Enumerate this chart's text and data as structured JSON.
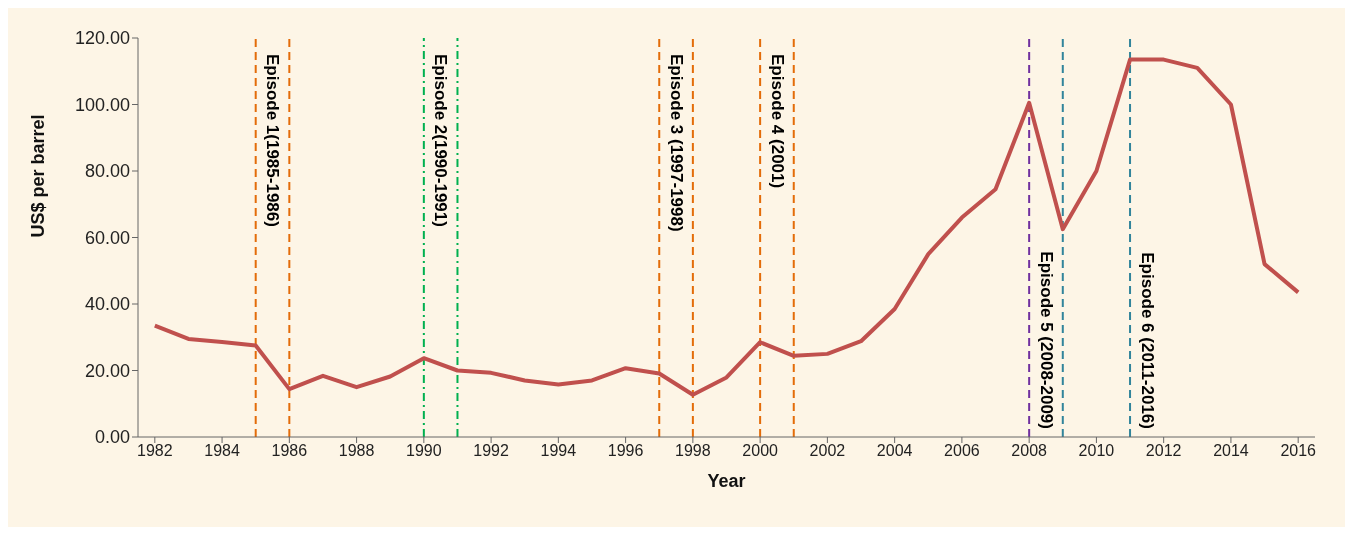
{
  "chart_data": {
    "type": "line",
    "xlabel": "Year",
    "ylabel": "US$ per barrel",
    "x": [
      1982,
      1983,
      1984,
      1985,
      1986,
      1987,
      1988,
      1989,
      1990,
      1991,
      1992,
      1993,
      1994,
      1995,
      1996,
      1997,
      1998,
      1999,
      2000,
      2001,
      2002,
      2003,
      2004,
      2005,
      2006,
      2007,
      2008,
      2009,
      2010,
      2011,
      2012,
      2013,
      2014,
      2015,
      2016
    ],
    "series": [
      {
        "color": "#c0504d",
        "values": [
          33.5,
          29.5,
          28.6,
          27.5,
          14.4,
          18.4,
          15,
          18.2,
          23.7,
          20,
          19.3,
          17,
          15.8,
          17,
          20.7,
          19.1,
          12.7,
          17.9,
          28.5,
          24.4,
          25,
          28.8,
          38.5,
          55,
          66,
          74.5,
          100.5,
          62.5,
          80,
          113.5,
          113.5,
          111,
          100,
          52,
          43.5
        ]
      }
    ],
    "xlim": [
      1981.5,
      2016.5
    ],
    "xticks": [
      1982,
      1984,
      1986,
      1988,
      1990,
      1992,
      1994,
      1996,
      1998,
      2000,
      2002,
      2004,
      2006,
      2008,
      2010,
      2012,
      2014,
      2016
    ],
    "ylim": [
      0,
      120
    ],
    "yticks": [
      {
        "value": 0,
        "label": "0.00"
      },
      {
        "value": 20,
        "label": "20.00"
      },
      {
        "value": 40,
        "label": "40.00"
      },
      {
        "value": 60,
        "label": "60.00"
      },
      {
        "value": 80,
        "label": "80.00"
      },
      {
        "value": 100,
        "label": "100.00"
      },
      {
        "value": 120,
        "label": "120.00"
      }
    ],
    "grid": false,
    "legend": false,
    "marker": "none",
    "line_style": "solid",
    "ref_lines": [
      {
        "axis": "x",
        "value": 1985,
        "label": "Episode 1(1985-1986)",
        "color": "#e36c09",
        "line_style": "dashed"
      },
      {
        "axis": "x",
        "value": 1986,
        "color": "#e36c09",
        "line_style": "dashed"
      },
      {
        "axis": "x",
        "value": 1990,
        "label": "Episode 2(1990-1991)",
        "color": "#00b050",
        "line_style": "dashdot"
      },
      {
        "axis": "x",
        "value": 1991,
        "color": "#00b050",
        "line_style": "dashdot"
      },
      {
        "axis": "x",
        "value": 1997,
        "label": "Episode 3 (1997-1998)",
        "color": "#e36c09",
        "line_style": "dashed"
      },
      {
        "axis": "x",
        "value": 1998,
        "color": "#e36c09",
        "line_style": "dashed"
      },
      {
        "axis": "x",
        "value": 2000,
        "label": "Episode 4 (2001)",
        "color": "#e36c09",
        "line_style": "dashed"
      },
      {
        "axis": "x",
        "value": 2001,
        "color": "#e36c09",
        "line_style": "dashed"
      },
      {
        "axis": "x",
        "value": 2008,
        "label": "Episode 5 (2008-2009)",
        "color": "#7030a0",
        "line_style": "dashed"
      },
      {
        "axis": "x",
        "value": 2009,
        "color": "#31849b",
        "line_style": "dashed"
      },
      {
        "axis": "x",
        "value": 2011,
        "label": "Episode 6  (2011-2016)",
        "color": "#31849b",
        "line_style": "dashed"
      }
    ]
  }
}
